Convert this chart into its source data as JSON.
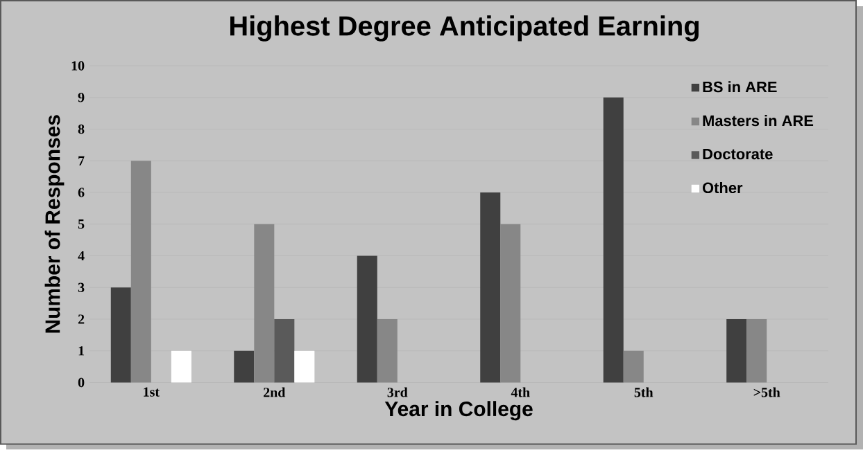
{
  "chart_data": {
    "type": "bar",
    "title": "Highest Degree Anticipated Earning",
    "xlabel": "Year in College",
    "ylabel": "Number of Responses",
    "categories": [
      "1st",
      "2nd",
      "3rd",
      "4th",
      "5th",
      ">5th"
    ],
    "series": [
      {
        "name": "BS in ARE",
        "color": "#404040",
        "values": [
          3,
          1,
          4,
          6,
          9,
          2
        ]
      },
      {
        "name": "Masters in ARE",
        "color": "#878787",
        "values": [
          7,
          5,
          2,
          5,
          1,
          2
        ]
      },
      {
        "name": "Doctorate",
        "color": "#5a5a5a",
        "values": [
          0,
          2,
          0,
          0,
          0,
          0
        ]
      },
      {
        "name": "Other",
        "color": "#ffffff",
        "values": [
          1,
          1,
          0,
          0,
          0,
          0
        ]
      }
    ],
    "ylim": [
      0,
      10
    ],
    "yticks": [
      0,
      1,
      2,
      3,
      4,
      5,
      6,
      7,
      8,
      9,
      10
    ],
    "grid": "y",
    "legend": "top right"
  }
}
